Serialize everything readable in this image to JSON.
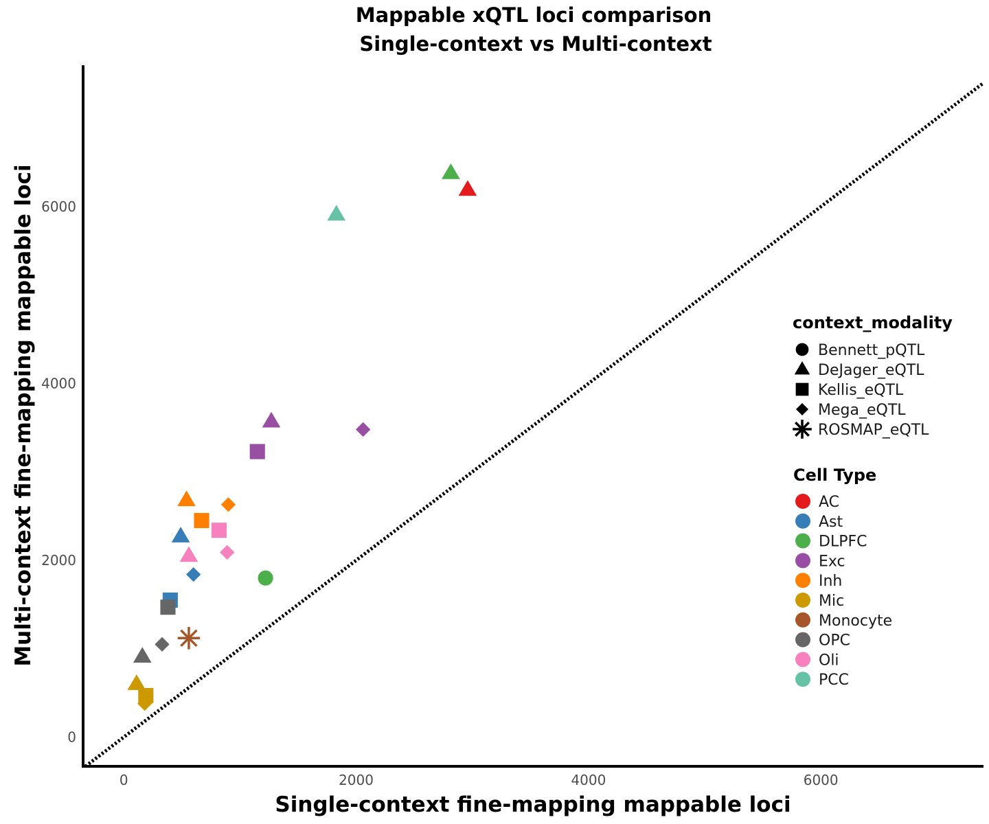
{
  "chart_data": {
    "type": "scatter",
    "title": "Mappable xQTL loci comparison",
    "subtitle": "Single-context vs Multi-context",
    "xlabel": "Single-context fine-mapping mappable loci",
    "ylabel": "Multi-context fine-mapping mappable loci",
    "xlim": [
      -350,
      7400
    ],
    "ylim": [
      -330,
      7600
    ],
    "xticks": [
      0,
      2000,
      4000,
      6000
    ],
    "yticks": [
      0,
      2000,
      4000,
      6000
    ],
    "grid": false,
    "reference_line": {
      "type": "identity",
      "style": "dotted"
    },
    "legend_placement": "right",
    "shape_legend": {
      "title": "context_modality",
      "items": [
        {
          "label": "Bennett_pQTL",
          "shape": "circle"
        },
        {
          "label": "DeJager_eQTL",
          "shape": "triangle"
        },
        {
          "label": "Kellis_eQTL",
          "shape": "square"
        },
        {
          "label": "Mega_eQTL",
          "shape": "diamond"
        },
        {
          "label": "ROSMAP_eQTL",
          "shape": "asterisk"
        }
      ]
    },
    "color_legend": {
      "title": "Cell Type",
      "items": [
        {
          "label": "AC",
          "color": "#E41A1C"
        },
        {
          "label": "Ast",
          "color": "#377EB8"
        },
        {
          "label": "DLPFC",
          "color": "#4DAF4A"
        },
        {
          "label": "Exc",
          "color": "#984EA3"
        },
        {
          "label": "Inh",
          "color": "#FF7F00"
        },
        {
          "label": "Mic",
          "color": "#CC9900"
        },
        {
          "label": "Monocyte",
          "color": "#A65628"
        },
        {
          "label": "OPC",
          "color": "#666666"
        },
        {
          "label": "Oli",
          "color": "#F781BF"
        },
        {
          "label": "PCC",
          "color": "#66C2A5"
        }
      ]
    },
    "points": [
      {
        "x": 2815,
        "y": 6380,
        "shape": "triangle",
        "cell": "DLPFC"
      },
      {
        "x": 2960,
        "y": 6190,
        "shape": "triangle",
        "cell": "AC"
      },
      {
        "x": 1830,
        "y": 5910,
        "shape": "triangle",
        "cell": "PCC"
      },
      {
        "x": 1270,
        "y": 3570,
        "shape": "triangle",
        "cell": "Exc"
      },
      {
        "x": 2060,
        "y": 3480,
        "shape": "diamond",
        "cell": "Exc"
      },
      {
        "x": 1150,
        "y": 3230,
        "shape": "square",
        "cell": "Exc"
      },
      {
        "x": 540,
        "y": 2680,
        "shape": "triangle",
        "cell": "Inh"
      },
      {
        "x": 900,
        "y": 2630,
        "shape": "diamond",
        "cell": "Inh"
      },
      {
        "x": 670,
        "y": 2450,
        "shape": "square",
        "cell": "Inh"
      },
      {
        "x": 820,
        "y": 2340,
        "shape": "square",
        "cell": "Oli"
      },
      {
        "x": 490,
        "y": 2270,
        "shape": "triangle",
        "cell": "Ast"
      },
      {
        "x": 890,
        "y": 2090,
        "shape": "diamond",
        "cell": "Oli"
      },
      {
        "x": 560,
        "y": 2050,
        "shape": "triangle",
        "cell": "Oli"
      },
      {
        "x": 600,
        "y": 1840,
        "shape": "diamond",
        "cell": "Ast"
      },
      {
        "x": 1220,
        "y": 1800,
        "shape": "circle",
        "cell": "DLPFC"
      },
      {
        "x": 400,
        "y": 1550,
        "shape": "square",
        "cell": "Ast"
      },
      {
        "x": 380,
        "y": 1470,
        "shape": "square",
        "cell": "OPC"
      },
      {
        "x": 560,
        "y": 1120,
        "shape": "asterisk",
        "cell": "Monocyte"
      },
      {
        "x": 330,
        "y": 1050,
        "shape": "diamond",
        "cell": "OPC"
      },
      {
        "x": 160,
        "y": 910,
        "shape": "triangle",
        "cell": "OPC"
      },
      {
        "x": 110,
        "y": 600,
        "shape": "triangle",
        "cell": "Mic"
      },
      {
        "x": 190,
        "y": 470,
        "shape": "square",
        "cell": "Mic"
      },
      {
        "x": 180,
        "y": 380,
        "shape": "diamond",
        "cell": "Mic"
      }
    ]
  }
}
